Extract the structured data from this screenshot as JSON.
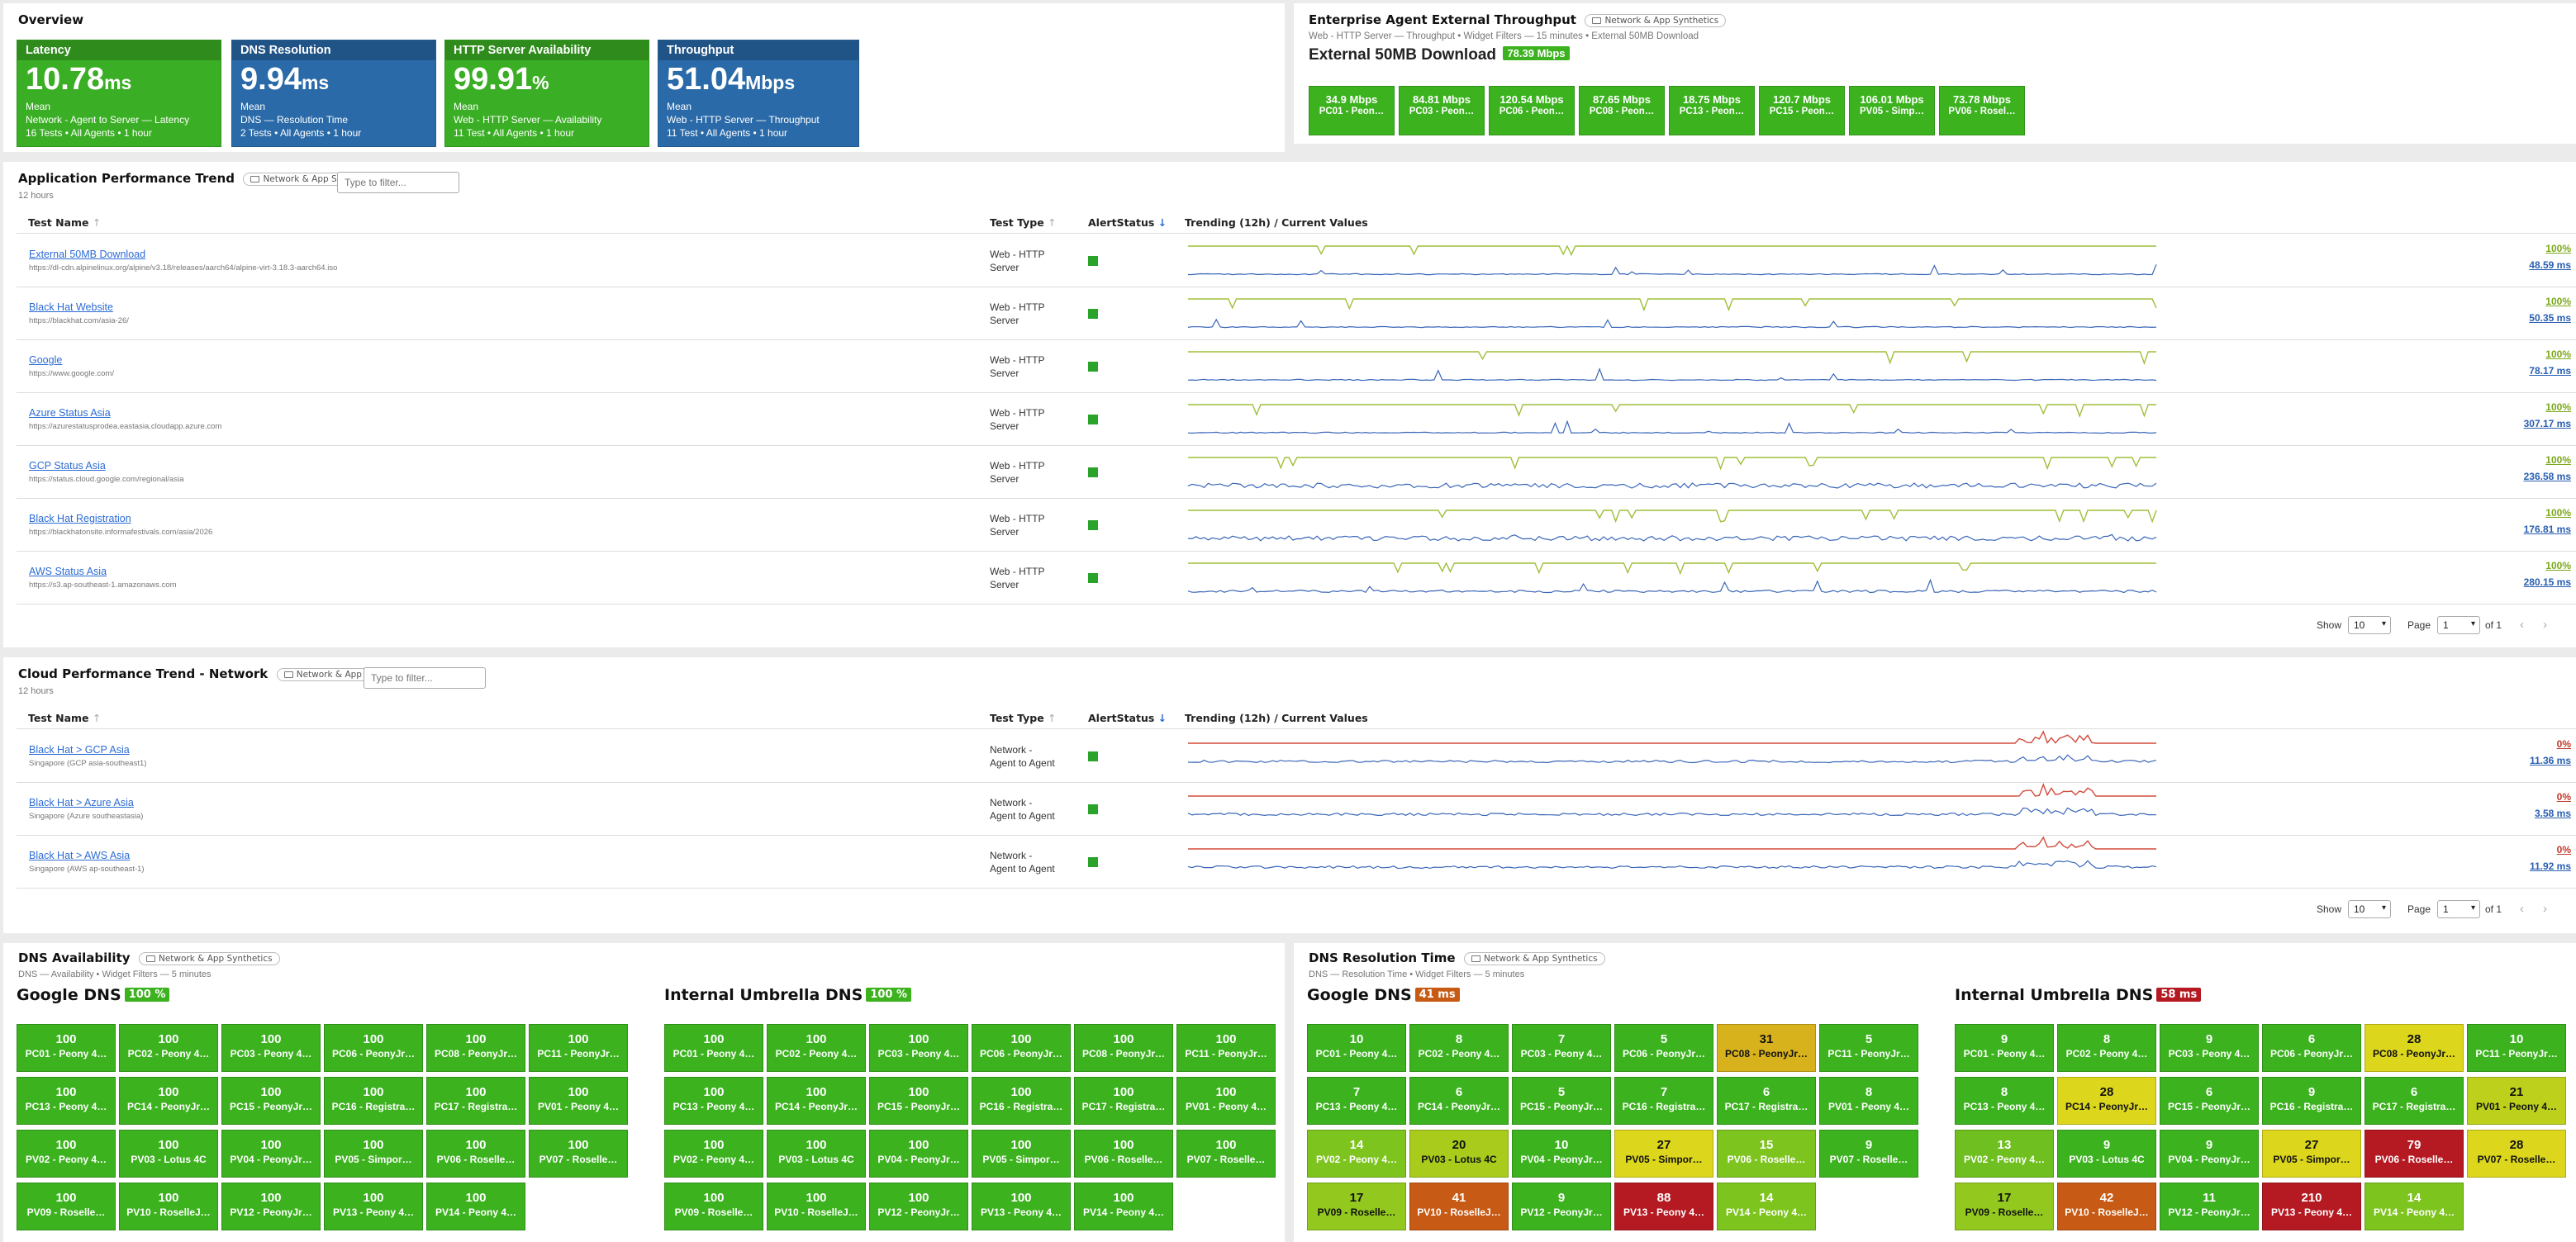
{
  "overview": {
    "title": "Overview",
    "cards": [
      {
        "title": "Latency",
        "value": "10.78",
        "unit": "ms",
        "stat": "Mean",
        "line1": "Network - Agent to Server — Latency",
        "line2": "16 Tests • All Agents • 1 hour",
        "color": "#3aae24"
      },
      {
        "title": "DNS Resolution",
        "value": "9.94",
        "unit": "ms",
        "stat": "Mean",
        "line1": "DNS — Resolution Time",
        "line2": "2 Tests • All Agents • 1 hour",
        "color": "#2a6aa8"
      },
      {
        "title": "HTTP Server Availability",
        "value": "99.91",
        "unit": "%",
        "stat": "Mean",
        "line1": "Web - HTTP Server — Availability",
        "line2": "11 Test • All Agents • 1 hour",
        "color": "#3aae24"
      },
      {
        "title": "Throughput",
        "value": "51.04",
        "unit": "Mbps",
        "stat": "Mean",
        "line1": "Web - HTTP Server — Throughput",
        "line2": "11 Test • All Agents • 1 hour",
        "color": "#2a6aa8"
      }
    ]
  },
  "throughput": {
    "title": "Enterprise Agent External Throughput",
    "tag": "Network & App Synthetics",
    "subtitle": "Web - HTTP Server — Throughput • Widget Filters — 15 minutes • External 50MB Download",
    "heading": "External 50MB Download",
    "badge": "78.39 Mbps",
    "tiles": [
      {
        "v": "34.9 Mbps",
        "l": "PC01 - Peon…"
      },
      {
        "v": "84.81 Mbps",
        "l": "PC03 - Peon…"
      },
      {
        "v": "120.54 Mbps",
        "l": "PC06 - Peon…"
      },
      {
        "v": "87.65 Mbps",
        "l": "PC08 - Peon…"
      },
      {
        "v": "18.75 Mbps",
        "l": "PC13 - Peon…"
      },
      {
        "v": "120.7 Mbps",
        "l": "PC15 - Peon…"
      },
      {
        "v": "106.01 Mbps",
        "l": "PV05 - Simp…"
      },
      {
        "v": "73.78 Mbps",
        "l": "PV06 - Rosel…"
      }
    ]
  },
  "apt": {
    "title": "Application Performance Trend",
    "tag": "Network & App Synthetics",
    "filter_placeholder": "Type to filter...",
    "period": "12 hours",
    "columns": {
      "name": "Test Name",
      "type": "Test Type",
      "alert": "AlertStatus",
      "trend": "Trending (12h) / Current Values"
    },
    "rows": [
      {
        "name": "External 50MB Download",
        "url": "https://dl-cdn.alpinelinux.org/alpine/v3.18/releases/aarch64/alpine-virt-3.18.3-aarch64.iso",
        "type1": "Web - HTTP",
        "type2": "Server",
        "pct": "100%",
        "ms": "48.59 ms"
      },
      {
        "name": "Black Hat Website",
        "url": "https://blackhat.com/asia-26/",
        "type1": "Web - HTTP",
        "type2": "Server",
        "pct": "100%",
        "ms": "50.35 ms"
      },
      {
        "name": "Google",
        "url": "https://www.google.com/",
        "type1": "Web - HTTP",
        "type2": "Server",
        "pct": "100%",
        "ms": "78.17 ms"
      },
      {
        "name": "Azure Status Asia",
        "url": "https://azurestatusprodea.eastasia.cloudapp.azure.com",
        "type1": "Web - HTTP",
        "type2": "Server",
        "pct": "100%",
        "ms": "307.17 ms"
      },
      {
        "name": "GCP Status Asia",
        "url": "https://status.cloud.google.com/regional/asia",
        "type1": "Web - HTTP",
        "type2": "Server",
        "pct": "100%",
        "ms": "236.58 ms"
      },
      {
        "name": "Black Hat Registration",
        "url": "https://blackhatonsite.informafestivals.com/asia/2026",
        "type1": "Web - HTTP",
        "type2": "Server",
        "pct": "100%",
        "ms": "176.81 ms"
      },
      {
        "name": "AWS Status Asia",
        "url": "https://s3.ap-southeast-1.amazonaws.com",
        "type1": "Web - HTTP",
        "type2": "Server",
        "pct": "100%",
        "ms": "280.15 ms"
      }
    ],
    "pager": {
      "show_label": "Show",
      "show_value": "10",
      "page_label": "Page",
      "page_value": "1",
      "of_label": "of 1"
    }
  },
  "cpt": {
    "title": "Cloud Performance Trend - Network",
    "tag": "Network & App Synthetics",
    "filter_placeholder": "Type to filter...",
    "period": "12 hours",
    "columns": {
      "name": "Test Name",
      "type": "Test Type",
      "alert": "AlertStatus",
      "trend": "Trending (12h) / Current Values"
    },
    "rows": [
      {
        "name": "Black Hat > GCP Asia",
        "url": "Singapore (GCP asia-southeast1)",
        "type1": "Network -",
        "type2": "Agent to Agent",
        "pct": "0%",
        "ms": "11.36 ms"
      },
      {
        "name": "Black Hat > Azure Asia",
        "url": "Singapore (Azure southeastasia)",
        "type1": "Network -",
        "type2": "Agent to Agent",
        "pct": "0%",
        "ms": "3.58 ms"
      },
      {
        "name": "Black Hat > AWS Asia",
        "url": "Singapore (AWS ap-southeast-1)",
        "type1": "Network -",
        "type2": "Agent to Agent",
        "pct": "0%",
        "ms": "11.92 ms"
      }
    ],
    "pager": {
      "show_label": "Show",
      "show_value": "10",
      "page_label": "Page",
      "page_value": "1",
      "of_label": "of 1"
    }
  },
  "dns_avail": {
    "title": "DNS Availability",
    "tag": "Network & App Synthetics",
    "subtitle": "DNS — Availability • Widget Filters — 5 minutes",
    "groups": [
      {
        "heading": "Google DNS",
        "badge": "100 %",
        "badge_color": "#3cb21f",
        "tiles": [
          {
            "v": "100",
            "l": "PC01 - Peony 4…",
            "c": "#3cb21f"
          },
          {
            "v": "100",
            "l": "PC02 - Peony 4…",
            "c": "#3cb21f"
          },
          {
            "v": "100",
            "l": "PC03 - Peony 4…",
            "c": "#3cb21f"
          },
          {
            "v": "100",
            "l": "PC06 - PeonyJr…",
            "c": "#3cb21f"
          },
          {
            "v": "100",
            "l": "PC08 - PeonyJr…",
            "c": "#3cb21f"
          },
          {
            "v": "100",
            "l": "PC11 - PeonyJr…",
            "c": "#3cb21f"
          },
          {
            "v": "100",
            "l": "PC13 - Peony 4…",
            "c": "#3cb21f"
          },
          {
            "v": "100",
            "l": "PC14 - PeonyJr…",
            "c": "#3cb21f"
          },
          {
            "v": "100",
            "l": "PC15 - PeonyJr…",
            "c": "#3cb21f"
          },
          {
            "v": "100",
            "l": "PC16 - Registra…",
            "c": "#3cb21f"
          },
          {
            "v": "100",
            "l": "PC17 - Registra…",
            "c": "#3cb21f"
          },
          {
            "v": "100",
            "l": "PV01 - Peony 4…",
            "c": "#3cb21f"
          },
          {
            "v": "100",
            "l": "PV02 - Peony 4…",
            "c": "#3cb21f"
          },
          {
            "v": "100",
            "l": "PV03 - Lotus 4C",
            "c": "#3cb21f"
          },
          {
            "v": "100",
            "l": "PV04 - PeonyJr…",
            "c": "#3cb21f"
          },
          {
            "v": "100",
            "l": "PV05 - Simpor…",
            "c": "#3cb21f"
          },
          {
            "v": "100",
            "l": "PV06 - Roselle…",
            "c": "#3cb21f"
          },
          {
            "v": "100",
            "l": "PV07 - Roselle…",
            "c": "#3cb21f"
          },
          {
            "v": "100",
            "l": "PV09 - Roselle…",
            "c": "#3cb21f"
          },
          {
            "v": "100",
            "l": "PV10 - RoselleJ…",
            "c": "#3cb21f"
          },
          {
            "v": "100",
            "l": "PV12 - PeonyJr…",
            "c": "#3cb21f"
          },
          {
            "v": "100",
            "l": "PV13 - Peony 4…",
            "c": "#3cb21f"
          },
          {
            "v": "100",
            "l": "PV14 - Peony 4…",
            "c": "#3cb21f"
          }
        ]
      },
      {
        "heading": "Internal Umbrella DNS",
        "badge": "100 %",
        "badge_color": "#3cb21f",
        "tiles": [
          {
            "v": "100",
            "l": "PC01 - Peony 4…",
            "c": "#3cb21f"
          },
          {
            "v": "100",
            "l": "PC02 - Peony 4…",
            "c": "#3cb21f"
          },
          {
            "v": "100",
            "l": "PC03 - Peony 4…",
            "c": "#3cb21f"
          },
          {
            "v": "100",
            "l": "PC06 - PeonyJr…",
            "c": "#3cb21f"
          },
          {
            "v": "100",
            "l": "PC08 - PeonyJr…",
            "c": "#3cb21f"
          },
          {
            "v": "100",
            "l": "PC11 - PeonyJr…",
            "c": "#3cb21f"
          },
          {
            "v": "100",
            "l": "PC13 - Peony 4…",
            "c": "#3cb21f"
          },
          {
            "v": "100",
            "l": "PC14 - PeonyJr…",
            "c": "#3cb21f"
          },
          {
            "v": "100",
            "l": "PC15 - PeonyJr…",
            "c": "#3cb21f"
          },
          {
            "v": "100",
            "l": "PC16 - Registra…",
            "c": "#3cb21f"
          },
          {
            "v": "100",
            "l": "PC17 - Registra…",
            "c": "#3cb21f"
          },
          {
            "v": "100",
            "l": "PV01 - Peony 4…",
            "c": "#3cb21f"
          },
          {
            "v": "100",
            "l": "PV02 - Peony 4…",
            "c": "#3cb21f"
          },
          {
            "v": "100",
            "l": "PV03 - Lotus 4C",
            "c": "#3cb21f"
          },
          {
            "v": "100",
            "l": "PV04 - PeonyJr…",
            "c": "#3cb21f"
          },
          {
            "v": "100",
            "l": "PV05 - Simpor…",
            "c": "#3cb21f"
          },
          {
            "v": "100",
            "l": "PV06 - Roselle…",
            "c": "#3cb21f"
          },
          {
            "v": "100",
            "l": "PV07 - Roselle…",
            "c": "#3cb21f"
          },
          {
            "v": "100",
            "l": "PV09 - Roselle…",
            "c": "#3cb21f"
          },
          {
            "v": "100",
            "l": "PV10 - RoselleJ…",
            "c": "#3cb21f"
          },
          {
            "v": "100",
            "l": "PV12 - PeonyJr…",
            "c": "#3cb21f"
          },
          {
            "v": "100",
            "l": "PV13 - Peony 4…",
            "c": "#3cb21f"
          },
          {
            "v": "100",
            "l": "PV14 - Peony 4…",
            "c": "#3cb21f"
          }
        ]
      }
    ]
  },
  "dns_time": {
    "title": "DNS Resolution Time",
    "tag": "Network & App Synthetics",
    "subtitle": "DNS — Resolution Time • Widget Filters — 5 minutes",
    "groups": [
      {
        "heading": "Google DNS",
        "badge": "41 ms",
        "badge_color": "#c75a14",
        "tiles": [
          {
            "v": "10",
            "l": "PC01 - Peony 4…",
            "c": "#3cb21f"
          },
          {
            "v": "8",
            "l": "PC02 - Peony 4…",
            "c": "#3cb21f"
          },
          {
            "v": "7",
            "l": "PC03 - Peony 4…",
            "c": "#3cb21f"
          },
          {
            "v": "5",
            "l": "PC06 - PeonyJr…",
            "c": "#3cb21f"
          },
          {
            "v": "31",
            "l": "PC08 - PeonyJr…",
            "c": "#d8b21c",
            "dark": true
          },
          {
            "v": "5",
            "l": "PC11 - PeonyJr…",
            "c": "#3cb21f"
          },
          {
            "v": "7",
            "l": "PC13 - Peony 4…",
            "c": "#3cb21f"
          },
          {
            "v": "6",
            "l": "PC14 - PeonyJr…",
            "c": "#3cb21f"
          },
          {
            "v": "5",
            "l": "PC15 - PeonyJr…",
            "c": "#3cb21f"
          },
          {
            "v": "7",
            "l": "PC16 - Registra…",
            "c": "#3cb21f"
          },
          {
            "v": "6",
            "l": "PC17 - Registra…",
            "c": "#3cb21f"
          },
          {
            "v": "8",
            "l": "PV01 - Peony 4…",
            "c": "#3cb21f"
          },
          {
            "v": "14",
            "l": "PV02 - Peony 4…",
            "c": "#7ec41f"
          },
          {
            "v": "20",
            "l": "PV03 - Lotus 4C",
            "c": "#a8cb1c",
            "dark": true
          },
          {
            "v": "10",
            "l": "PV04 - PeonyJr…",
            "c": "#3cb21f"
          },
          {
            "v": "27",
            "l": "PV05 - Simpor…",
            "c": "#dcd61c",
            "dark": true
          },
          {
            "v": "15",
            "l": "PV06 - Roselle…",
            "c": "#7ec41f"
          },
          {
            "v": "9",
            "l": "PV07 - Roselle…",
            "c": "#3cb21f"
          },
          {
            "v": "17",
            "l": "PV09 - Roselle…",
            "c": "#93c81e",
            "dark": true
          },
          {
            "v": "41",
            "l": "PV10 - RoselleJ…",
            "c": "#c75a14"
          },
          {
            "v": "9",
            "l": "PV12 - PeonyJr…",
            "c": "#3cb21f"
          },
          {
            "v": "88",
            "l": "PV13 - Peony 4…",
            "c": "#b51a22"
          },
          {
            "v": "14",
            "l": "PV14 - Peony 4…",
            "c": "#7ec41f"
          }
        ]
      },
      {
        "heading": "Internal Umbrella DNS",
        "badge": "58 ms",
        "badge_color": "#b51a22",
        "tiles": [
          {
            "v": "9",
            "l": "PC01 - Peony 4…",
            "c": "#3cb21f"
          },
          {
            "v": "8",
            "l": "PC02 - Peony 4…",
            "c": "#3cb21f"
          },
          {
            "v": "9",
            "l": "PC03 - Peony 4…",
            "c": "#3cb21f"
          },
          {
            "v": "6",
            "l": "PC06 - PeonyJr…",
            "c": "#3cb21f"
          },
          {
            "v": "28",
            "l": "PC08 - PeonyJr…",
            "c": "#dcd61c",
            "dark": true
          },
          {
            "v": "10",
            "l": "PC11 - PeonyJr…",
            "c": "#3cb21f"
          },
          {
            "v": "8",
            "l": "PC13 - Peony 4…",
            "c": "#3cb21f"
          },
          {
            "v": "28",
            "l": "PC14 - PeonyJr…",
            "c": "#dcd61c",
            "dark": true
          },
          {
            "v": "6",
            "l": "PC15 - PeonyJr…",
            "c": "#3cb21f"
          },
          {
            "v": "9",
            "l": "PC16 - Registra…",
            "c": "#3cb21f"
          },
          {
            "v": "6",
            "l": "PC17 - Registra…",
            "c": "#3cb21f"
          },
          {
            "v": "21",
            "l": "PV01 - Peony 4…",
            "c": "#bcd01c",
            "dark": true
          },
          {
            "v": "13",
            "l": "PV02 - Peony 4…",
            "c": "#6ebf1f"
          },
          {
            "v": "9",
            "l": "PV03 - Lotus 4C",
            "c": "#3cb21f"
          },
          {
            "v": "9",
            "l": "PV04 - PeonyJr…",
            "c": "#3cb21f"
          },
          {
            "v": "27",
            "l": "PV05 - Simpor…",
            "c": "#dcd61c",
            "dark": true
          },
          {
            "v": "79",
            "l": "PV06 - Roselle…",
            "c": "#b51a22"
          },
          {
            "v": "28",
            "l": "PV07 - Roselle…",
            "c": "#dcd61c",
            "dark": true
          },
          {
            "v": "17",
            "l": "PV09 - Roselle…",
            "c": "#93c81e",
            "dark": true
          },
          {
            "v": "42",
            "l": "PV10 - RoselleJ…",
            "c": "#c75a14"
          },
          {
            "v": "11",
            "l": "PV12 - PeonyJr…",
            "c": "#3cb21f"
          },
          {
            "v": "210",
            "l": "PV13 - Peony 4…",
            "c": "#b51a22"
          },
          {
            "v": "14",
            "l": "PV14 - Peony 4…",
            "c": "#7ec41f"
          }
        ]
      }
    ]
  }
}
